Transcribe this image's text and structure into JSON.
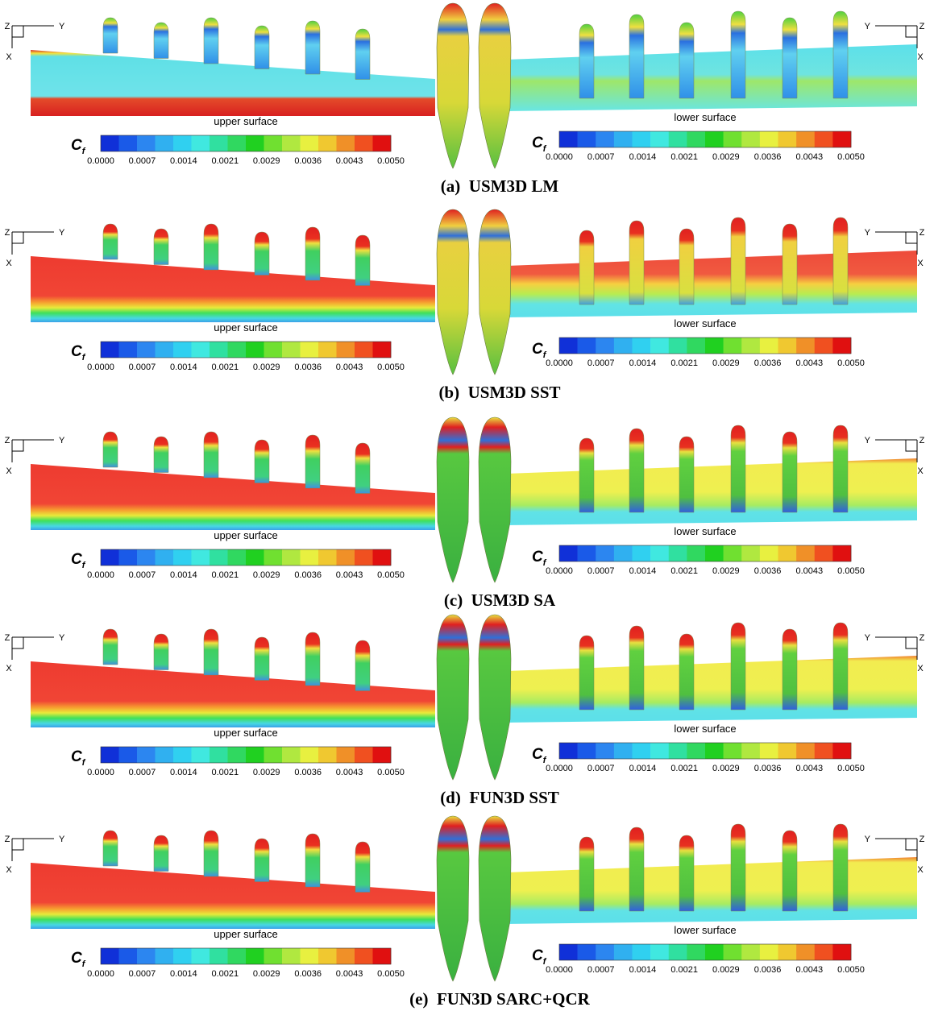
{
  "panels": [
    {
      "caption": "(a)  USM3D LM",
      "upper": {
        "label": "upper surface",
        "cf": {
          "symbol": "C",
          "subscript": "f"
        },
        "ticks": [
          "0.0000",
          "0.0007",
          "0.0014",
          "0.0021",
          "0.0029",
          "0.0036",
          "0.0043",
          "0.0050"
        ]
      },
      "lower": {
        "label": "lower surface",
        "cf": {
          "symbol": "C",
          "subscript": "f"
        },
        "ticks": [
          "0.0000",
          "0.0007",
          "0.0014",
          "0.0021",
          "0.0029",
          "0.0036",
          "0.0043",
          "0.0050"
        ]
      },
      "triad_left": {
        "z": "Z",
        "y": "Y",
        "x": "X"
      },
      "triad_right": {
        "z": "Z",
        "y": "Y",
        "x": "X"
      }
    },
    {
      "caption": "(b)  USM3D SST",
      "upper": {
        "label": "upper surface",
        "cf": {
          "symbol": "C",
          "subscript": "f"
        },
        "ticks": [
          "0.0000",
          "0.0007",
          "0.0014",
          "0.0021",
          "0.0029",
          "0.0036",
          "0.0043",
          "0.0050"
        ]
      },
      "lower": {
        "label": "lower surface",
        "cf": {
          "symbol": "C",
          "subscript": "f"
        },
        "ticks": [
          "0.0000",
          "0.0007",
          "0.0014",
          "0.0021",
          "0.0029",
          "0.0036",
          "0.0043",
          "0.0050"
        ]
      },
      "triad_left": {
        "z": "Z",
        "y": "Y",
        "x": "X"
      },
      "triad_right": {
        "z": "Z",
        "y": "Y",
        "x": "X"
      }
    },
    {
      "caption": "(c)  USM3D SA",
      "upper": {
        "label": "upper surface",
        "cf": {
          "symbol": "C",
          "subscript": "f"
        },
        "ticks": [
          "0.0000",
          "0.0007",
          "0.0014",
          "0.0021",
          "0.0029",
          "0.0036",
          "0.0043",
          "0.0050"
        ]
      },
      "lower": {
        "label": "lower surface",
        "cf": {
          "symbol": "C",
          "subscript": "f"
        },
        "ticks": [
          "0.0000",
          "0.0007",
          "0.0014",
          "0.0021",
          "0.0029",
          "0.0036",
          "0.0043",
          "0.0050"
        ]
      },
      "triad_left": {
        "z": "Z",
        "y": "Y",
        "x": "X"
      },
      "triad_right": {
        "z": "Z",
        "y": "Y",
        "x": "X"
      }
    },
    {
      "caption": "(d)  FUN3D SST",
      "upper": {
        "label": "upper surface",
        "cf": {
          "symbol": "C",
          "subscript": "f"
        },
        "ticks": [
          "0.0000",
          "0.0007",
          "0.0014",
          "0.0021",
          "0.0029",
          "0.0036",
          "0.0043",
          "0.0050"
        ]
      },
      "lower": {
        "label": "lower surface",
        "cf": {
          "symbol": "C",
          "subscript": "f"
        },
        "ticks": [
          "0.0000",
          "0.0007",
          "0.0014",
          "0.0021",
          "0.0029",
          "0.0036",
          "0.0043",
          "0.0050"
        ]
      },
      "triad_left": {
        "z": "Z",
        "y": "Y",
        "x": "X"
      },
      "triad_right": {
        "z": "Z",
        "y": "Y",
        "x": "X"
      }
    },
    {
      "caption": "(e)  FUN3D SARC+QCR",
      "upper": {
        "label": "upper surface",
        "cf": {
          "symbol": "C",
          "subscript": "f"
        },
        "ticks": [
          "0.0000",
          "0.0007",
          "0.0014",
          "0.0021",
          "0.0029",
          "0.0036",
          "0.0043",
          "0.0050"
        ]
      },
      "lower": {
        "label": "lower surface",
        "cf": {
          "symbol": "C",
          "subscript": "f"
        },
        "ticks": [
          "0.0000",
          "0.0007",
          "0.0014",
          "0.0021",
          "0.0029",
          "0.0036",
          "0.0043",
          "0.0050"
        ]
      },
      "triad_left": {
        "z": "Z",
        "y": "Y",
        "x": "X"
      },
      "triad_right": {
        "z": "Z",
        "y": "Y",
        "x": "X"
      }
    }
  ]
}
